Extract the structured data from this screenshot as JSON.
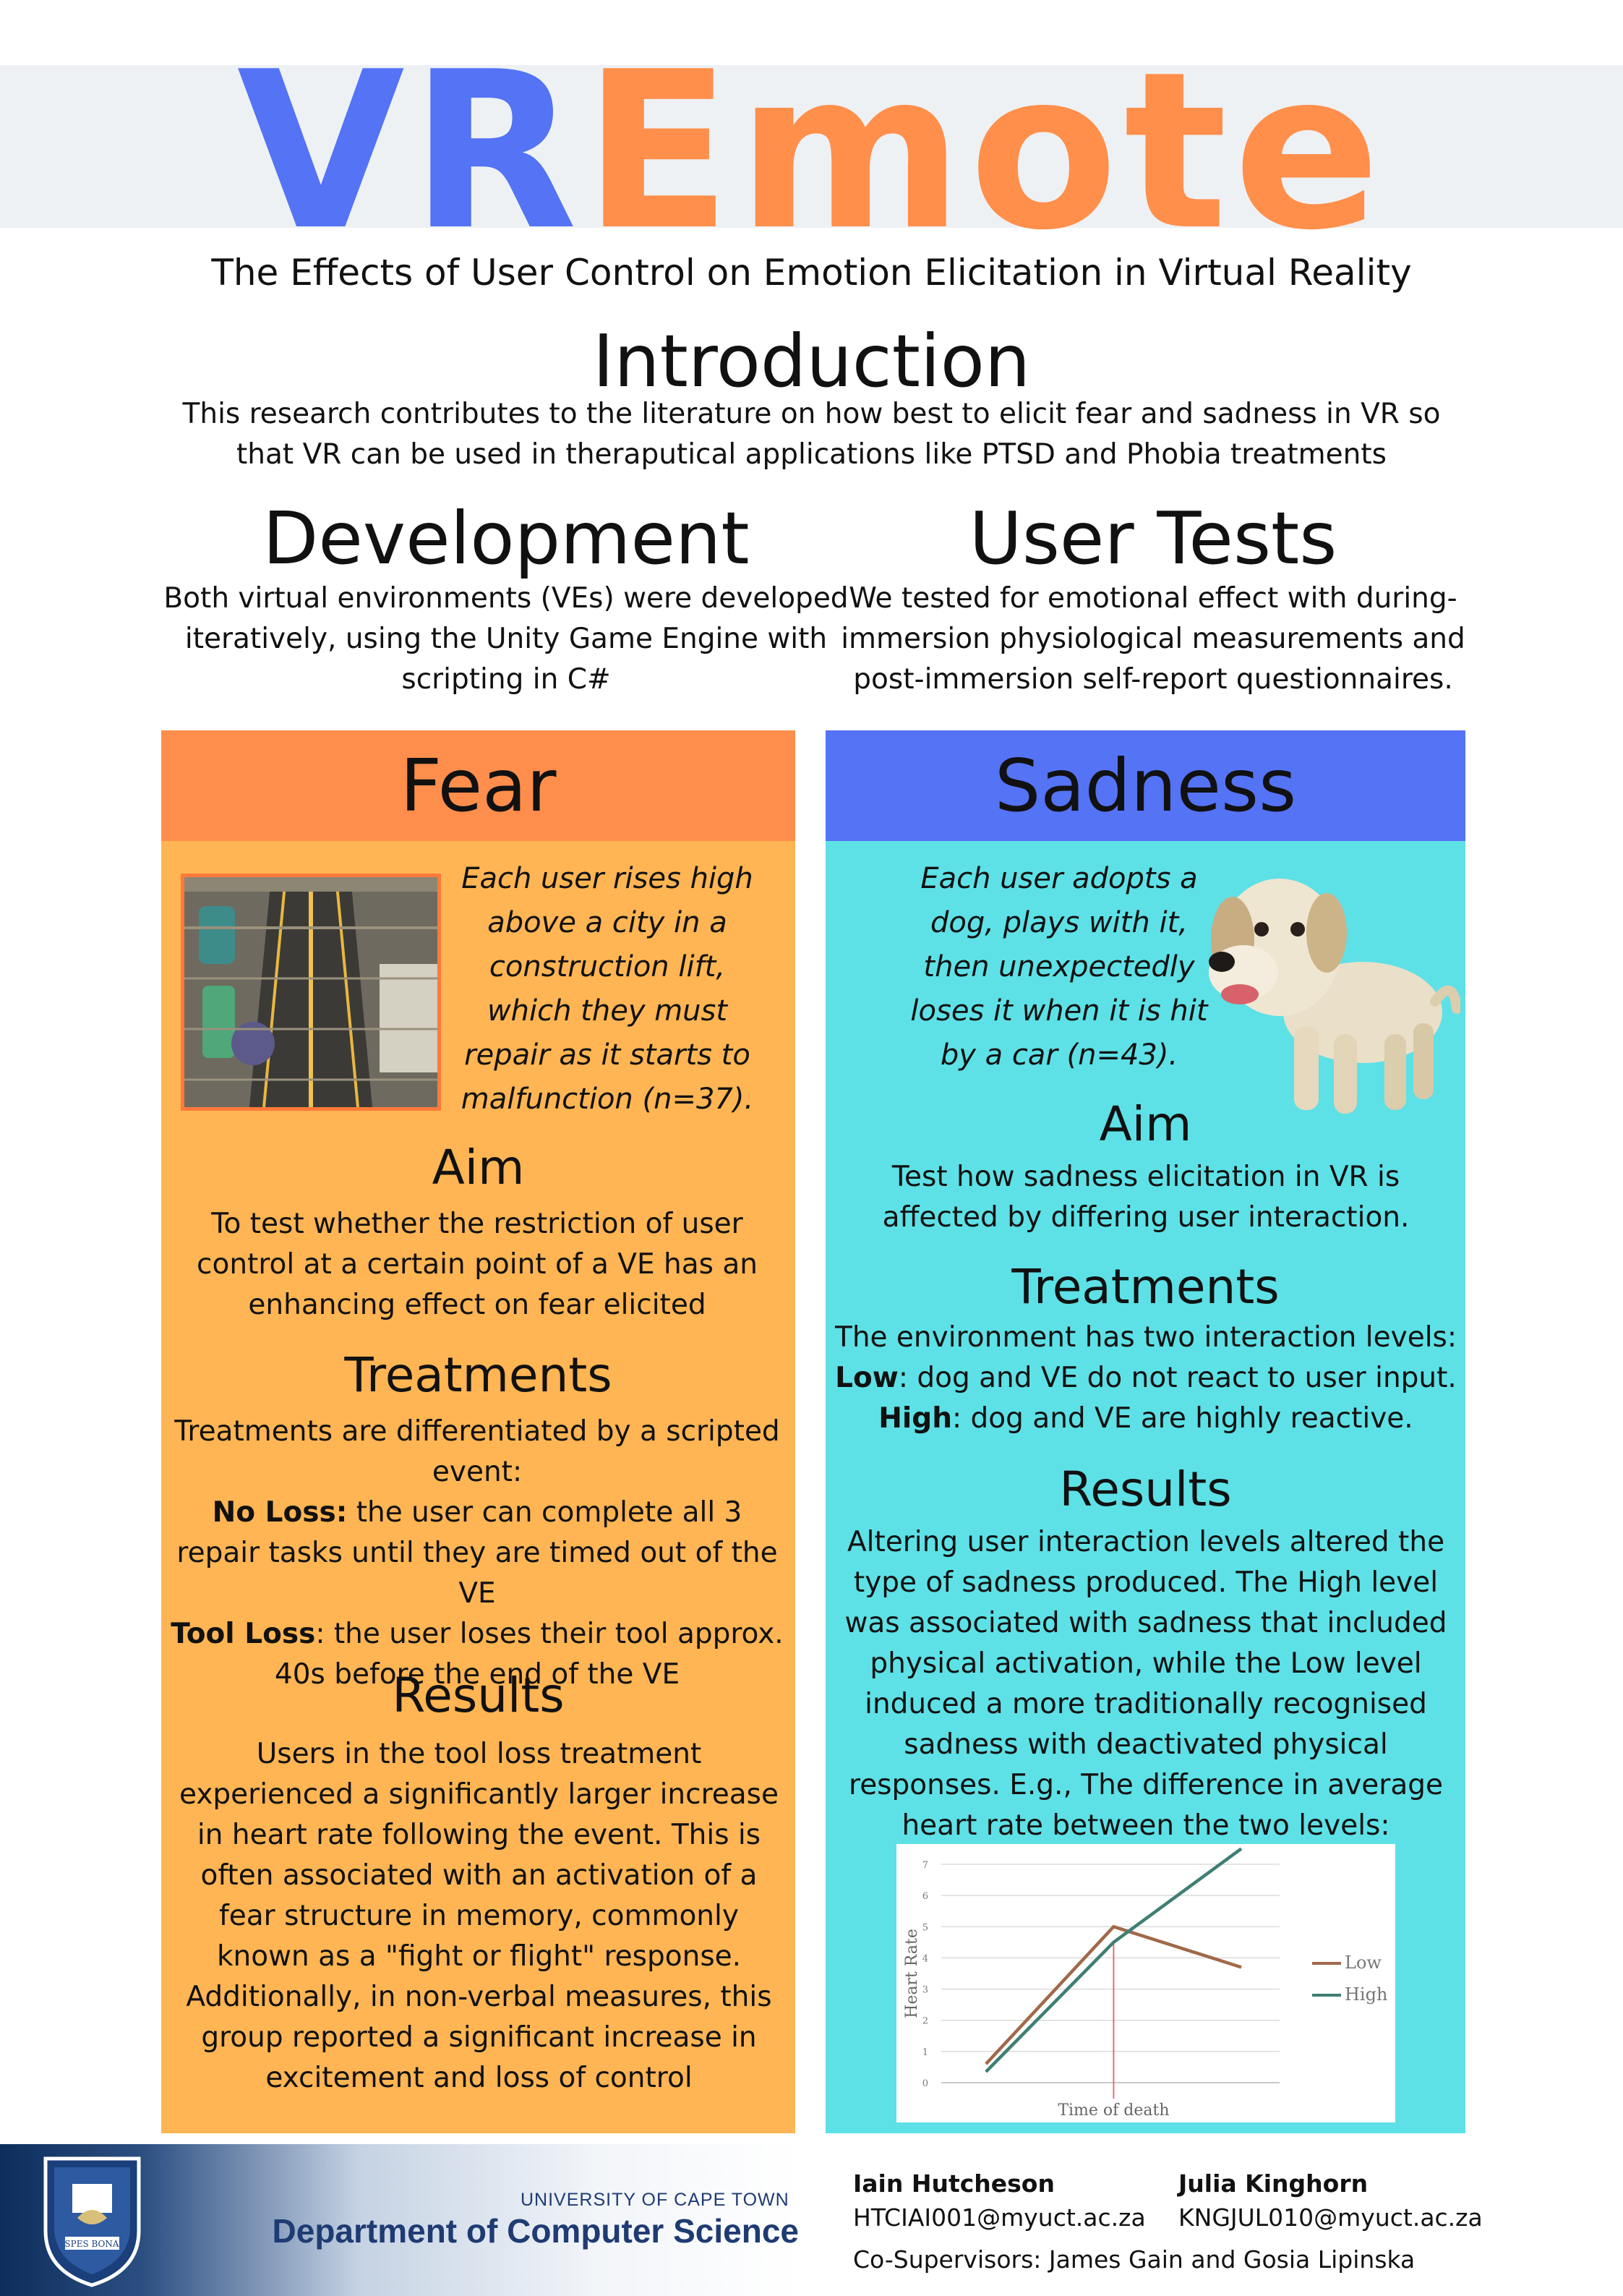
{
  "title": {
    "part1": "VR",
    "part2": "Emote"
  },
  "subtitle": "The Effects of User Control on Emotion Elicitation in Virtual Reality",
  "introduction": {
    "heading": "Introduction",
    "text": "This research contributes to the literature on how best to elicit fear and sadness in VR so that VR can be used in theraputical applications like PTSD and Phobia treatments"
  },
  "development": {
    "heading": "Development",
    "text": "Both virtual environments (VEs) were developed iteratively, using the Unity Game Engine with scripting in C#"
  },
  "user_tests": {
    "heading": "User Tests",
    "text": "We tested for emotional effect with during-immersion physiological measurements and post-immersion self-report questionnaires."
  },
  "fear": {
    "heading": "Fear",
    "description": "Each user rises high above a city in a construction lift, which they must repair as it starts to malfunction (n=37).",
    "aim_heading": "Aim",
    "aim_text": "To test whether the restriction of user control at a certain point of a VE has an enhancing effect on fear elicited",
    "treatments_heading": "Treatments",
    "treatments_intro": "Treatments are differentiated by a scripted event:",
    "no_loss_label": "No Loss:",
    "no_loss_text": " the user can complete all 3 repair tasks until they are timed out of the VE",
    "tool_loss_label": "Tool Loss",
    "tool_loss_text": ": the user loses their tool approx. 40s before the end of the VE",
    "results_heading": "Results",
    "results_text": "Users in the tool loss treatment experienced a significantly larger increase in heart rate following the event. This is often associated with an activation of a fear structure in memory, commonly known as a \"fight or flight\" response. Additionally, in non-verbal measures, this group reported a significant increase in excitement and loss of control"
  },
  "sadness": {
    "heading": "Sadness",
    "description": "Each user adopts a dog, plays with it, then unexpectedly loses it when it is hit by a car (n=43).",
    "aim_heading": "Aim",
    "aim_text": "Test how sadness elicitation in VR is affected by differing user interaction.",
    "treatments_heading": "Treatments",
    "treatments_intro": "The environment has two interaction levels:",
    "low_label": "Low",
    "low_text": ": dog and VE do not react to user input.",
    "high_label": "High",
    "high_text": ": dog and VE are highly reactive.",
    "results_heading": "Results",
    "results_text": "Altering user interaction levels altered the type of sadness produced. The High level was associated with sadness that included physical activation, while the Low level induced a more traditionally recognised sadness with deactivated physical responses. E.g., The difference in average heart rate between the two levels:"
  },
  "chart_data": {
    "type": "line",
    "title": "",
    "xlabel": "Time of death",
    "ylabel": "Heart Rate",
    "ylim": [
      0,
      7
    ],
    "yticks": [
      "0",
      "1",
      "2",
      "3",
      "4",
      "5",
      "6",
      "7"
    ],
    "x": [
      0,
      1,
      2
    ],
    "event_marker_x": 1,
    "grid": true,
    "legend_position": "right",
    "series": [
      {
        "name": "Low",
        "color": "#a0694a",
        "values": [
          0.6,
          5.0,
          3.7
        ]
      },
      {
        "name": "High",
        "color": "#3f7f73",
        "values": [
          0.35,
          4.5,
          7.5
        ]
      }
    ]
  },
  "footer": {
    "university": "UNIVERSITY OF CAPE TOWN",
    "department": "Department of Computer Science",
    "crest_motto": "SPES BONA",
    "author1_name": "Iain Hutcheson",
    "author1_email": "HTCIAI001@myuct.ac.za",
    "author2_name": "Julia Kinghorn",
    "author2_email": "KNGJUL010@myuct.ac.za",
    "supervisors": "Co-Supervisors: James Gain and Gosia Lipinska"
  },
  "colors": {
    "blue": "#5473f5",
    "orange": "#ff8f4b",
    "fear_panel": "#ffb553",
    "sad_panel": "#5de1e6",
    "navy": "#1f3b73"
  }
}
